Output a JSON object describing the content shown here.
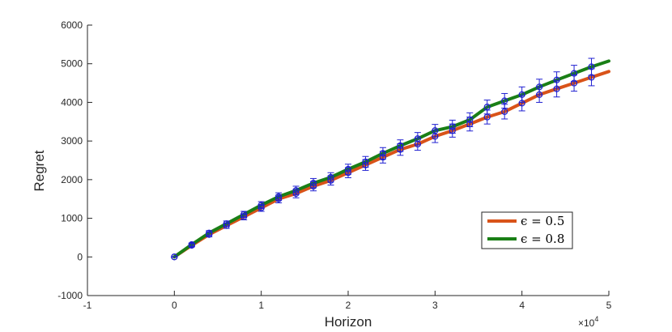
{
  "chart_data": {
    "type": "line",
    "xlabel": "Horizon",
    "ylabel": "Regret",
    "x_multiplier_label": "×10",
    "x_multiplier_exp": "4",
    "xlim": [
      -1,
      5
    ],
    "ylim": [
      -1000,
      6000
    ],
    "xticks": [
      -1,
      0,
      1,
      2,
      3,
      4,
      5
    ],
    "xtick_labels": [
      "-1",
      "0",
      "1",
      "2",
      "3",
      "4",
      "5"
    ],
    "yticks": [
      -1000,
      0,
      1000,
      2000,
      3000,
      4000,
      5000,
      6000
    ],
    "ytick_labels": [
      "-1000",
      "0",
      "1000",
      "2000",
      "3000",
      "4000",
      "5000",
      "6000"
    ],
    "grid": false,
    "legend_position": "lower-right",
    "series": [
      {
        "name": "ϵ = 0.5",
        "color": "#d95319",
        "x": [
          0,
          0.2,
          0.4,
          0.6,
          0.8,
          1.0,
          1.2,
          1.4,
          1.6,
          1.8,
          2.0,
          2.2,
          2.4,
          2.6,
          2.8,
          3.0,
          3.2,
          3.4,
          3.6,
          3.8,
          4.0,
          4.2,
          4.4,
          4.6,
          4.8,
          5.0
        ],
        "y": [
          0,
          300,
          580,
          810,
          1040,
          1270,
          1500,
          1640,
          1830,
          1980,
          2180,
          2380,
          2580,
          2780,
          2920,
          3120,
          3270,
          3440,
          3620,
          3760,
          3980,
          4200,
          4350,
          4500,
          4650,
          4800
        ],
        "errors": [
          0,
          40,
          60,
          70,
          80,
          90,
          100,
          110,
          120,
          120,
          130,
          140,
          150,
          150,
          160,
          160,
          170,
          180,
          180,
          190,
          200,
          200,
          210,
          210,
          220,
          null
        ]
      },
      {
        "name": "ϵ = 0.8",
        "color": "#1a7f16",
        "x": [
          0,
          0.2,
          0.4,
          0.6,
          0.8,
          1.0,
          1.2,
          1.4,
          1.6,
          1.8,
          2.0,
          2.2,
          2.4,
          2.6,
          2.8,
          3.0,
          3.2,
          3.4,
          3.6,
          3.8,
          4.0,
          4.2,
          4.4,
          4.6,
          4.8,
          5.0
        ],
        "y": [
          0,
          320,
          620,
          860,
          1100,
          1340,
          1560,
          1720,
          1910,
          2060,
          2270,
          2460,
          2680,
          2880,
          3060,
          3270,
          3370,
          3550,
          3880,
          4040,
          4200,
          4400,
          4580,
          4750,
          4920,
          5070
        ],
        "errors": [
          0,
          40,
          60,
          70,
          80,
          90,
          100,
          110,
          120,
          120,
          130,
          140,
          150,
          150,
          160,
          160,
          170,
          180,
          180,
          190,
          200,
          200,
          210,
          210,
          220,
          null
        ]
      }
    ]
  },
  "style": {
    "errorbar_color": "#1f1fd1",
    "axis_color": "#262626"
  }
}
